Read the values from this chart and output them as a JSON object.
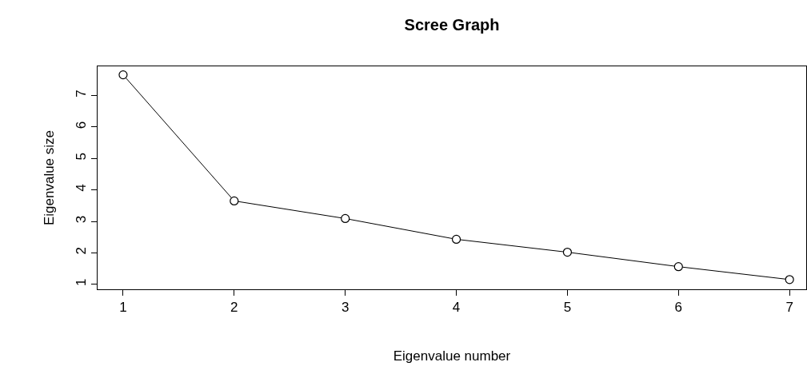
{
  "chart_data": {
    "type": "line",
    "title": "Scree Graph",
    "xlabel": "Eigenvalue number",
    "ylabel": "Eigenvalue size",
    "x": [
      1,
      2,
      3,
      4,
      5,
      6,
      7
    ],
    "series": [
      {
        "color": "#000000",
        "values": [
          7.66,
          3.65,
          3.09,
          2.43,
          2.02,
          1.56,
          1.15
        ]
      }
    ],
    "xlim": [
      0.77,
      7.15
    ],
    "xticks": [
      1,
      2,
      3,
      4,
      5,
      6,
      7
    ],
    "ylim": [
      0.84,
      7.93
    ],
    "yticks": [
      1,
      2,
      3,
      4,
      5,
      6,
      7
    ],
    "marker": "circle",
    "line_style": "solid"
  }
}
